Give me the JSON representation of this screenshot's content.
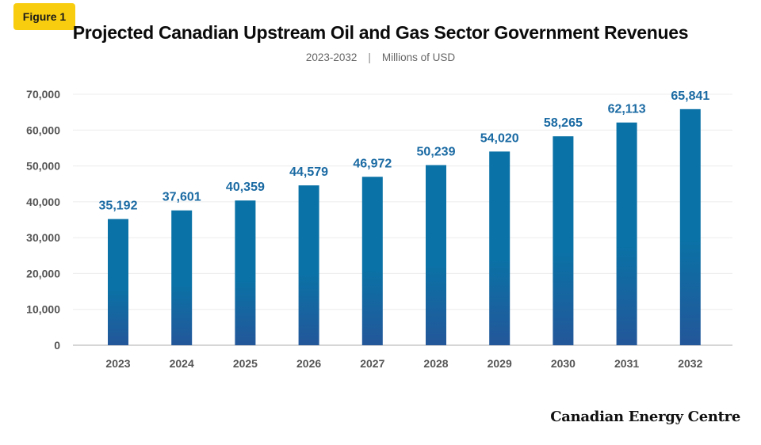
{
  "badge": {
    "label": "Figure 1"
  },
  "header": {
    "title": "Projected Canadian Upstream Oil and Gas Sector Government Revenues",
    "subtitle_range": "2023-2032",
    "subtitle_separator": "|",
    "subtitle_units": "Millions of USD"
  },
  "footer": {
    "brand": "Canadian Energy Centre"
  },
  "colors": {
    "bar_top": "#0a72a6",
    "bar_bottom": "#23579a",
    "data_label": "#1a6aa3",
    "badge": "#f8cd10"
  },
  "chart_data": {
    "type": "bar",
    "categories": [
      "2023",
      "2024",
      "2025",
      "2026",
      "2027",
      "2028",
      "2029",
      "2030",
      "2031",
      "2032"
    ],
    "values": [
      35192,
      37601,
      40359,
      44579,
      46972,
      50239,
      54020,
      58265,
      62113,
      65841
    ],
    "value_labels": [
      "35,192",
      "37,601",
      "40,359",
      "44,579",
      "46,972",
      "50,239",
      "54,020",
      "58,265",
      "62,113",
      "65,841"
    ],
    "yticks": [
      0,
      10000,
      20000,
      30000,
      40000,
      50000,
      60000,
      70000
    ],
    "ytick_labels": [
      "0",
      "10,000",
      "20,000",
      "30,000",
      "40,000",
      "50,000",
      "60,000",
      "70,000"
    ],
    "ylim": [
      0,
      70000
    ],
    "grid": true,
    "legend": "none"
  }
}
